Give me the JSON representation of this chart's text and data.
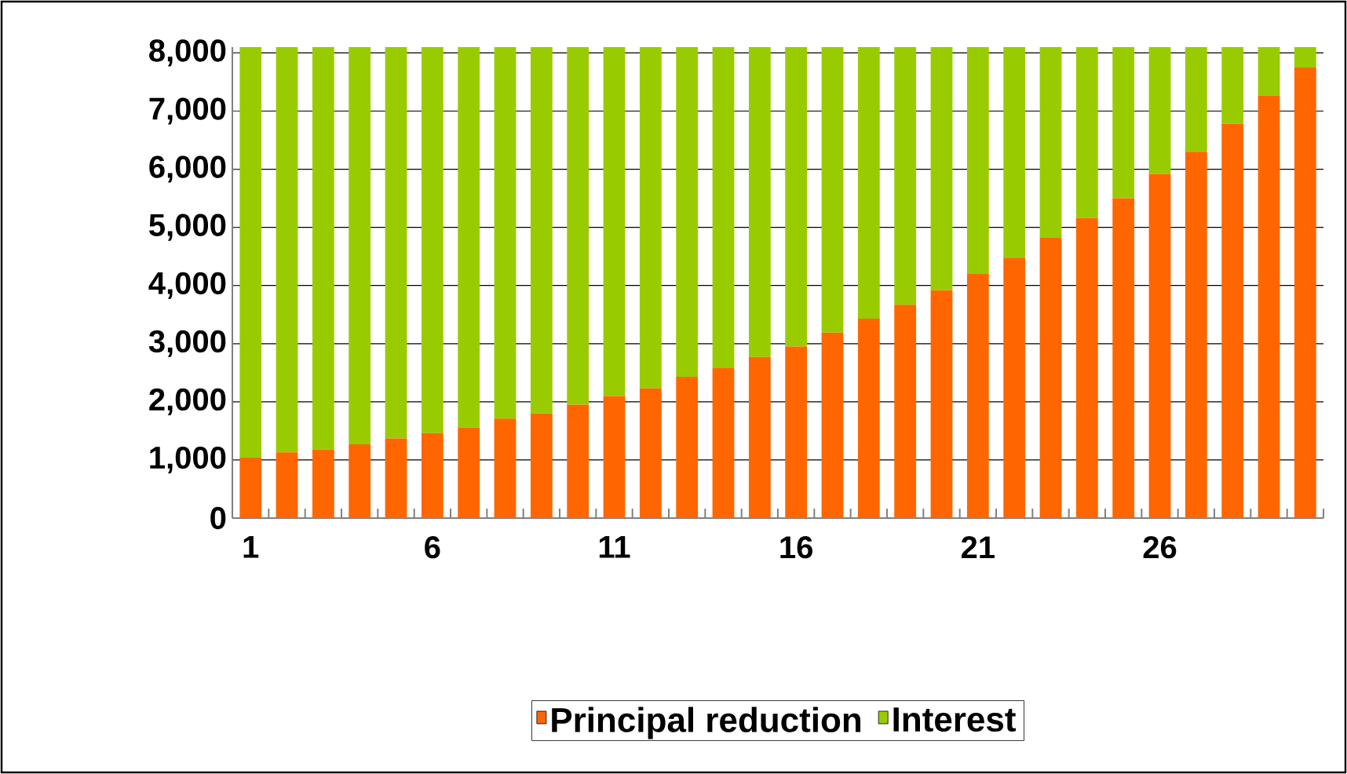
{
  "chart_data": {
    "type": "bar",
    "stacked": true,
    "categories": [
      "1",
      null,
      null,
      null,
      null,
      "6",
      null,
      null,
      null,
      null,
      "11",
      null,
      null,
      null,
      null,
      "16",
      null,
      null,
      null,
      null,
      "21",
      null,
      null,
      null,
      null,
      "26",
      null,
      null,
      null,
      null
    ],
    "series": [
      {
        "name": "Principal reduction",
        "color": "#ff6600",
        "values": [
          1040,
          1130,
          1180,
          1270,
          1370,
          1460,
          1560,
          1710,
          1800,
          1950,
          2100,
          2230,
          2430,
          2580,
          2770,
          2950,
          3190,
          3430,
          3670,
          3920,
          4200,
          4480,
          4820,
          5160,
          5500,
          5920,
          6300,
          6780,
          7270,
          7750
        ]
      },
      {
        "name": "Interest",
        "color": "#99cc00",
        "values": [
          7060,
          6970,
          6920,
          6830,
          6730,
          6640,
          6540,
          6390,
          6300,
          6150,
          6000,
          5870,
          5670,
          5520,
          5330,
          5150,
          4910,
          4670,
          4430,
          4180,
          3900,
          3620,
          3280,
          2940,
          2600,
          2180,
          1800,
          1320,
          830,
          350
        ]
      }
    ],
    "ylim": [
      0,
      8100
    ],
    "yticks": [
      {
        "value": 0,
        "label": "0"
      },
      {
        "value": 1000,
        "label": "1,000"
      },
      {
        "value": 2000,
        "label": "2,000"
      },
      {
        "value": 3000,
        "label": "3,000"
      },
      {
        "value": 4000,
        "label": "4,000"
      },
      {
        "value": 5000,
        "label": "5,000"
      },
      {
        "value": 6000,
        "label": "6,000"
      },
      {
        "value": 7000,
        "label": "7,000"
      },
      {
        "value": 8000,
        "label": "8,000"
      }
    ],
    "grid": "y",
    "legend": "bottom"
  }
}
